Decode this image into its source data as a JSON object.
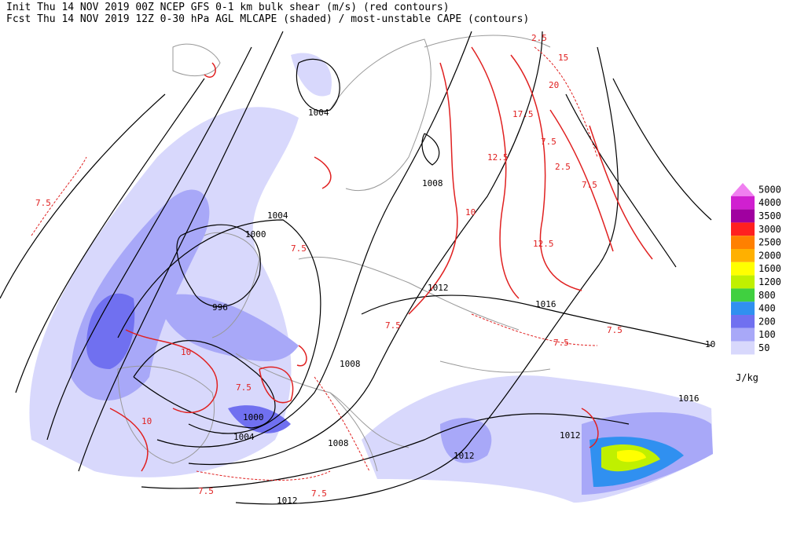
{
  "header": {
    "line1": "Init  Thu 14 NOV 2019 00Z  NCEP GFS 0-1 km bulk shear (m/s) (red contours)",
    "line2": "Fcst Thu 14 NOV 2019 12Z  0-30 hPa AGL MLCAPE (shaded) / most-unstable CAPE (contours)"
  },
  "legend": {
    "levels": [
      "5000",
      "4000",
      "3500",
      "3000",
      "2500",
      "2000",
      "1600",
      "1200",
      "800",
      "400",
      "200",
      "100",
      "50"
    ],
    "colors": [
      "#f080f0",
      "#d020d0",
      "#a000a0",
      "#ff2020",
      "#ff8000",
      "#ffb000",
      "#ffff00",
      "#c0f000",
      "#40d040",
      "#3090f0",
      "#7070f0",
      "#a8a8f8",
      "#d8d8fc"
    ],
    "unit": "J/kg"
  },
  "isobar_labels": [
    "1004",
    "1008",
    "1004",
    "1000",
    "996",
    "1012",
    "1016",
    "1008",
    "1000",
    "1004",
    "1008",
    "1012",
    "1012",
    "1016",
    "1012",
    "10"
  ],
  "shear_labels": [
    "7.5",
    "2.5",
    "15",
    "20",
    "17.5",
    "7.5",
    "2.5",
    "7.5",
    "12.5",
    "12.5",
    "10",
    "7.5",
    "7.5",
    "7.5",
    "7.5",
    "7.5",
    "10",
    "10",
    "7.5",
    "7.5"
  ]
}
